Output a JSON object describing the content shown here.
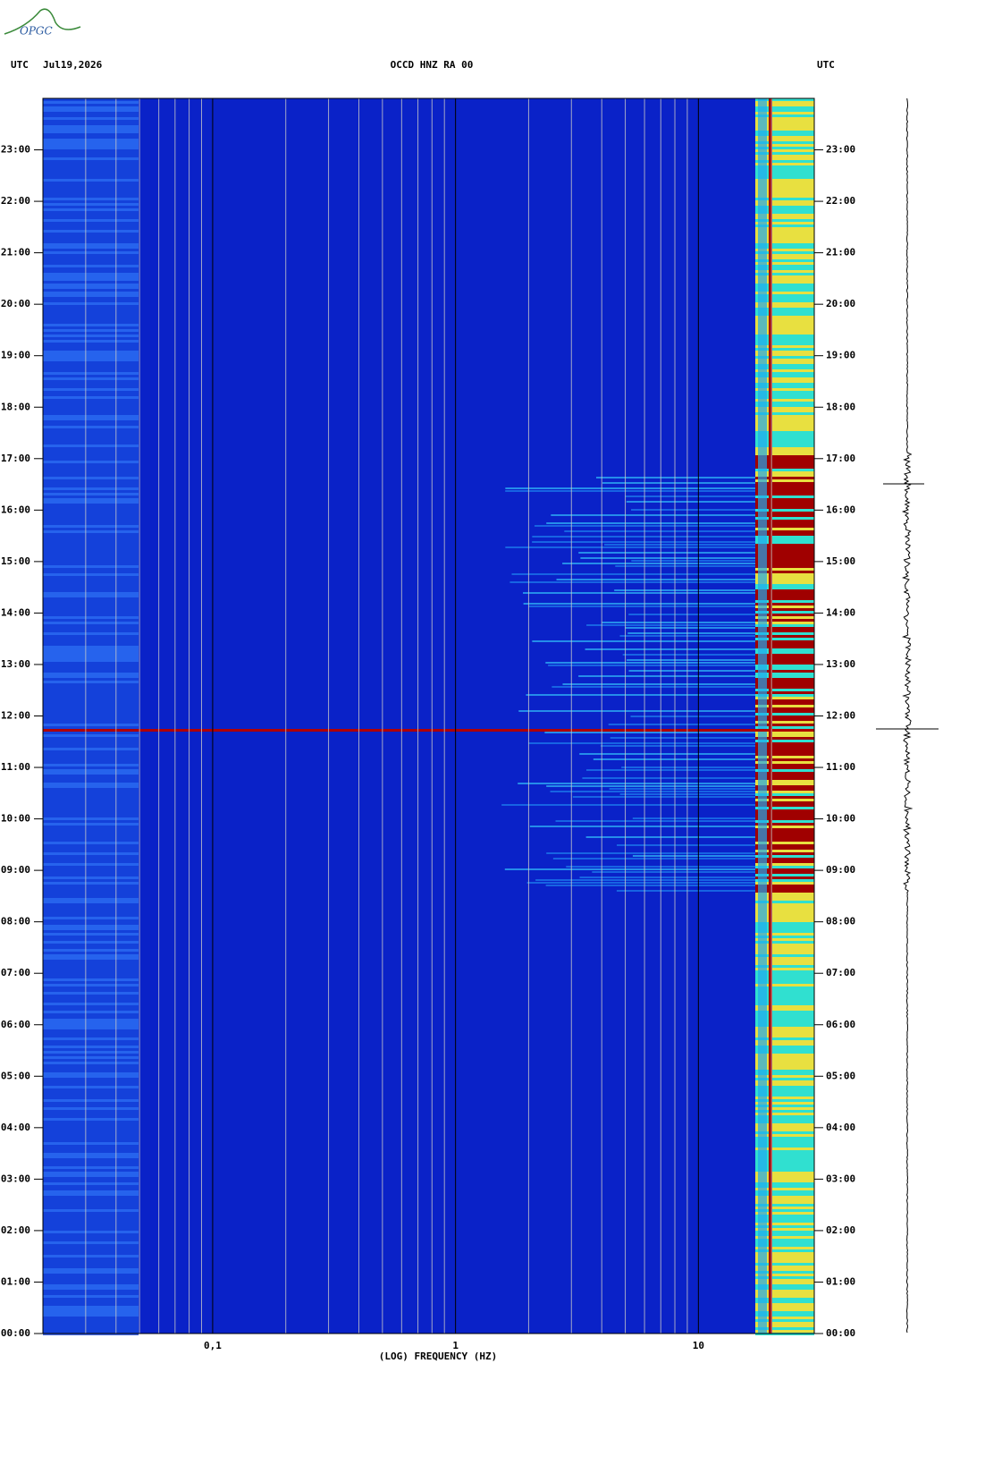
{
  "chart_data": {
    "type": "spectrogram",
    "logo": "OPGC",
    "timezone_left": "UTC",
    "date": "Jul19,2026",
    "title": "OCCD HNZ RA 00",
    "timezone_right": "UTC",
    "xlabel": "(LOG) FREQUENCY (HZ)",
    "xlog": true,
    "xlim": [
      0.02,
      30
    ],
    "xticks": [
      {
        "value": 0.1,
        "label": "0,1"
      },
      1,
      10
    ],
    "xminorticks": [
      0.03,
      0.04,
      0.05,
      0.06,
      0.07,
      0.08,
      0.09,
      0.2,
      0.3,
      0.4,
      0.5,
      0.6,
      0.7,
      0.8,
      0.9,
      2,
      3,
      4,
      5,
      6,
      7,
      8,
      9,
      20
    ],
    "ylim": [
      0,
      24
    ],
    "yticks": [
      {
        "value": 0,
        "label": "00:00"
      },
      {
        "value": 1,
        "label": "01:00"
      },
      {
        "value": 2,
        "label": "02:00"
      },
      {
        "value": 3,
        "label": "03:00"
      },
      {
        "value": 4,
        "label": "04:00"
      },
      {
        "value": 5,
        "label": "05:00"
      },
      {
        "value": 6,
        "label": "06:00"
      },
      {
        "value": 7,
        "label": "07:00"
      },
      {
        "value": 8,
        "label": "08:00"
      },
      {
        "value": 9,
        "label": "09:00"
      },
      {
        "value": 10,
        "label": "10:00"
      },
      {
        "value": 11,
        "label": "11:00"
      },
      {
        "value": 12,
        "label": "12:00"
      },
      {
        "value": 13,
        "label": "13:00"
      },
      {
        "value": 14,
        "label": "14:00"
      },
      {
        "value": 15,
        "label": "15:00"
      },
      {
        "value": 16,
        "label": "16:00"
      },
      {
        "value": 17,
        "label": "17:00"
      },
      {
        "value": 18,
        "label": "18:00"
      },
      {
        "value": 19,
        "label": "19:00"
      },
      {
        "value": 20,
        "label": "20:00"
      },
      {
        "value": 21,
        "label": "21:00"
      },
      {
        "value": 22,
        "label": "22:00"
      },
      {
        "value": 23,
        "label": "23:00"
      }
    ]
  }
}
